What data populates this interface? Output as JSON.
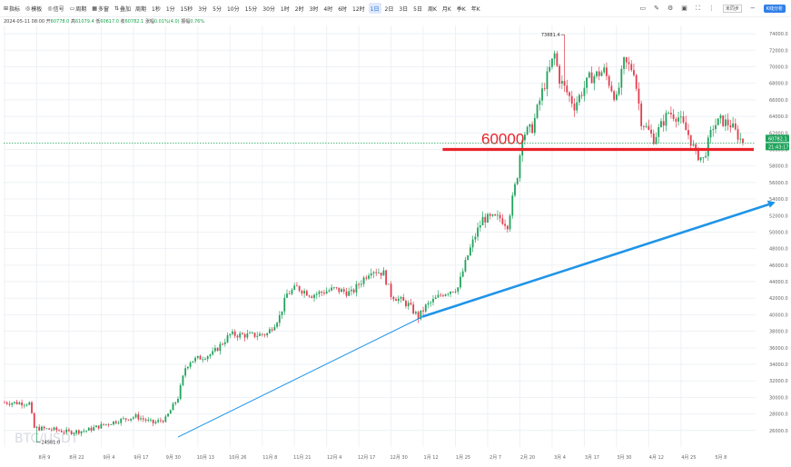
{
  "toolbar": {
    "buttons": [
      {
        "icon": "indicator-icon",
        "glyph": "⊞",
        "label": "指标"
      },
      {
        "icon": "template-icon",
        "glyph": "◎",
        "label": "模板"
      },
      {
        "icon": "signal-icon",
        "glyph": "◎",
        "label": "信号"
      },
      {
        "icon": "review-icon",
        "glyph": "▭",
        "label": "周期"
      },
      {
        "icon": "multi-chart-icon",
        "glyph": "▦",
        "label": "多窗"
      },
      {
        "icon": "compare-icon",
        "glyph": "⇅",
        "label": "叠加"
      }
    ],
    "periods": [
      "周期",
      "1秒",
      "1分",
      "15秒",
      "3分",
      "5分",
      "10分",
      "15分",
      "30分",
      "1时",
      "2时",
      "3时",
      "4时",
      "6时",
      "12时",
      "1日",
      "2日",
      "3日",
      "5日",
      "周K",
      "月K",
      "季K",
      "年K"
    ],
    "active_period": "1日",
    "lang": "未同步",
    "mode_badge": "K线分析"
  },
  "ohlc": {
    "date": "2024-05-11 08:00",
    "open_label": "开",
    "open": "60778.0",
    "high_label": "高",
    "high": "61079.4",
    "low_label": "低",
    "low": "60617.0",
    "close_label": "收",
    "close": "60782.1",
    "change_label": "涨幅",
    "change": "0.01%(4.0)",
    "amp_label": "振幅",
    "amp": "0.76%"
  },
  "chart_data": {
    "type": "candlestick",
    "title": "",
    "watermark": "BTC/USDT",
    "xlabel": "",
    "ylabel": "",
    "ylim": [
      24000,
      75000
    ],
    "y_ticks": [
      26000,
      28000,
      30000,
      32000,
      34000,
      36000,
      38000,
      40000,
      42000,
      44000,
      46000,
      48000,
      50000,
      52000,
      54000,
      56000,
      58000,
      60000,
      62000,
      64000,
      66000,
      68000,
      70000,
      72000,
      74000
    ],
    "x_ticks": [
      "8月 9",
      "8月 22",
      "9月 4",
      "9月 17",
      "9月 30",
      "10月 13",
      "10月 26",
      "11月 8",
      "11月 21",
      "12月 4",
      "12月 17",
      "12月 30",
      "1月 12",
      "1月 25",
      "2月 7",
      "2月 20",
      "3月 4",
      "3月 17",
      "3月 30",
      "4月 12",
      "4月 25",
      "5月 8"
    ],
    "x_tick_day_index": [
      0,
      13,
      26,
      39,
      52,
      65,
      78,
      91,
      104,
      117,
      130,
      143,
      156,
      169,
      182,
      195,
      208,
      221,
      234,
      247,
      260,
      273
    ],
    "anchor_points": [
      {
        "day": 0,
        "price": 29400
      },
      {
        "day": 10,
        "price": 29300
      },
      {
        "day": 12,
        "price": 26300
      },
      {
        "day": 20,
        "price": 26100
      },
      {
        "day": 26,
        "price": 25800
      },
      {
        "day": 33,
        "price": 26000
      },
      {
        "day": 39,
        "price": 26600
      },
      {
        "day": 46,
        "price": 27200
      },
      {
        "day": 53,
        "price": 27700
      },
      {
        "day": 60,
        "price": 26900
      },
      {
        "day": 65,
        "price": 27400
      },
      {
        "day": 70,
        "price": 30000
      },
      {
        "day": 73,
        "price": 33600
      },
      {
        "day": 75,
        "price": 34400
      },
      {
        "day": 84,
        "price": 35300
      },
      {
        "day": 91,
        "price": 37600
      },
      {
        "day": 100,
        "price": 37500
      },
      {
        "day": 106,
        "price": 37700
      },
      {
        "day": 111,
        "price": 39800
      },
      {
        "day": 114,
        "price": 42500
      },
      {
        "day": 118,
        "price": 43300
      },
      {
        "day": 124,
        "price": 42400
      },
      {
        "day": 133,
        "price": 43100
      },
      {
        "day": 140,
        "price": 42600
      },
      {
        "day": 148,
        "price": 45500
      },
      {
        "day": 153,
        "price": 45000
      },
      {
        "day": 156,
        "price": 42400
      },
      {
        "day": 163,
        "price": 41200
      },
      {
        "day": 167,
        "price": 39700
      },
      {
        "day": 170,
        "price": 41000
      },
      {
        "day": 177,
        "price": 42600
      },
      {
        "day": 183,
        "price": 43300
      },
      {
        "day": 187,
        "price": 47200
      },
      {
        "day": 190,
        "price": 49600
      },
      {
        "day": 193,
        "price": 51600
      },
      {
        "day": 200,
        "price": 51700
      },
      {
        "day": 203,
        "price": 50900
      },
      {
        "day": 207,
        "price": 57000
      },
      {
        "day": 209,
        "price": 61800
      },
      {
        "day": 213,
        "price": 62600
      },
      {
        "day": 217,
        "price": 67000
      },
      {
        "day": 222,
        "price": 71500
      },
      {
        "day": 224,
        "price": 68500
      },
      {
        "day": 230,
        "price": 65300
      },
      {
        "day": 236,
        "price": 68600
      },
      {
        "day": 242,
        "price": 69500
      },
      {
        "day": 247,
        "price": 66000
      },
      {
        "day": 250,
        "price": 70500
      },
      {
        "day": 254,
        "price": 69600
      },
      {
        "day": 257,
        "price": 63500
      },
      {
        "day": 262,
        "price": 61300
      },
      {
        "day": 268,
        "price": 64500
      },
      {
        "day": 272,
        "price": 63900
      },
      {
        "day": 276,
        "price": 61800
      },
      {
        "day": 279,
        "price": 59500
      },
      {
        "day": 282,
        "price": 58800
      },
      {
        "day": 286,
        "price": 62800
      },
      {
        "day": 289,
        "price": 63500
      },
      {
        "day": 293,
        "price": 63000
      },
      {
        "day": 298,
        "price": 60782
      }
    ],
    "total_days": 299,
    "high_annotation": {
      "label": "73881.4",
      "day": 226,
      "price": 73881.4
    },
    "low_annotation": {
      "label": "24581.0",
      "day": 13,
      "price": 24581.0
    },
    "last_price_label": "60782.1",
    "countdown_label": "21:43:17",
    "last_price": 60782.1,
    "horizontal_line": {
      "label": "60000",
      "price": 60000,
      "from_day": 175,
      "to_day": 299
    },
    "trendline_thin": {
      "from_day": 70,
      "from_price": 25200,
      "to_day": 169,
      "to_price": 39800
    },
    "trendline_thick": {
      "from_day": 169,
      "from_price": 39800,
      "to_day": 310,
      "to_price": 53500
    },
    "colors": {
      "up": "#1fa35c",
      "down": "#e13d4e",
      "support": "#e8232b",
      "trend": "#1f94e8",
      "grid": "#eef1f5",
      "last_price": "#1fa35c"
    }
  }
}
